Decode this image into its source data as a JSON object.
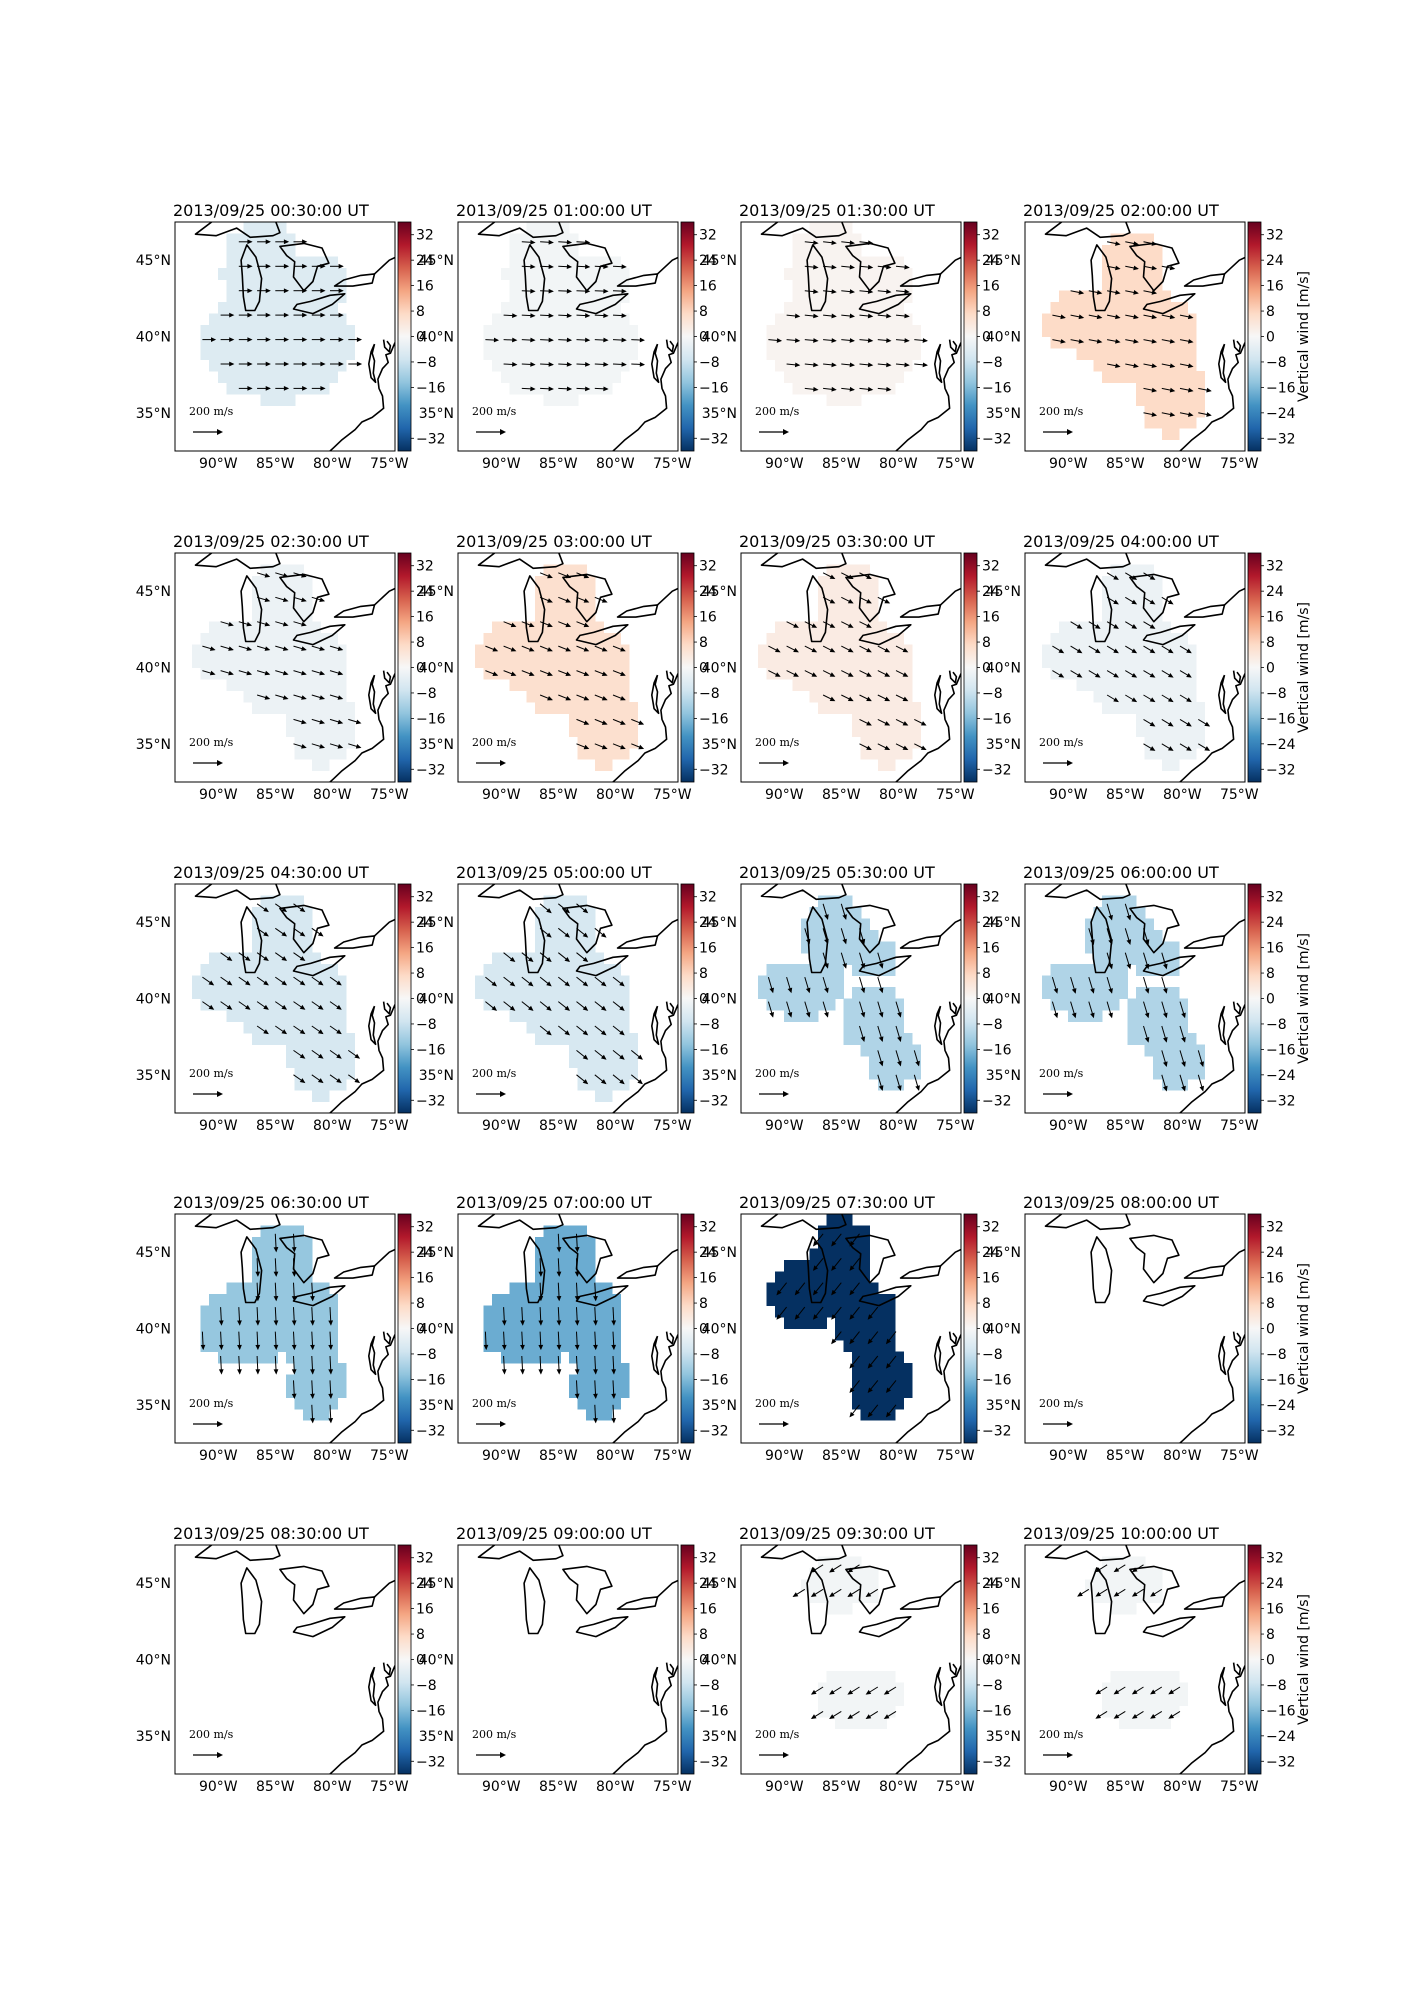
{
  "figure": {
    "cbar_ticks": [
      "32",
      "24",
      "16",
      "8",
      "0",
      "−8",
      "−16",
      "−24",
      "−32"
    ],
    "cbar_ticks_short": [
      "32",
      "24",
      "16",
      "8",
      "0",
      "−8",
      "−16",
      "−32"
    ],
    "cbar_label": "Vertical wind [m/s]",
    "lat_ticks": [
      "45°N",
      "40°N",
      "35°N"
    ],
    "lon_ticks": [
      "90°W",
      "85°W",
      "80°W",
      "75°W"
    ],
    "scale_label": "200 m/s",
    "colormap": "RdBu_r",
    "vmin": -36,
    "vmax": 36
  },
  "panels": [
    {
      "title": "2013/09/25 00:30:00 UT",
      "value": -5,
      "shape": "A",
      "arrow": [
        1,
        0
      ],
      "speed": 0.55
    },
    {
      "title": "2013/09/25 01:00:00 UT",
      "value": -1,
      "shape": "A",
      "arrow": [
        1,
        0.05
      ],
      "speed": 0.55
    },
    {
      "title": "2013/09/25 01:30:00 UT",
      "value": 1,
      "shape": "A",
      "arrow": [
        1,
        0.1
      ],
      "speed": 0.55
    },
    {
      "title": "2013/09/25 02:00:00 UT",
      "value": 7,
      "shape": "B",
      "arrow": [
        1,
        0.2
      ],
      "speed": 0.55
    },
    {
      "title": "2013/09/25 02:30:00 UT",
      "value": -2,
      "shape": "B",
      "arrow": [
        1,
        0.3
      ],
      "speed": 0.55
    },
    {
      "title": "2013/09/25 03:00:00 UT",
      "value": 6,
      "shape": "B",
      "arrow": [
        1,
        0.4
      ],
      "speed": 0.55
    },
    {
      "title": "2013/09/25 03:30:00 UT",
      "value": 3,
      "shape": "B",
      "arrow": [
        1,
        0.5
      ],
      "speed": 0.55
    },
    {
      "title": "2013/09/25 04:00:00 UT",
      "value": -2,
      "shape": "B",
      "arrow": [
        1,
        0.6
      ],
      "speed": 0.55
    },
    {
      "title": "2013/09/25 04:30:00 UT",
      "value": -6,
      "shape": "B",
      "arrow": [
        1,
        0.7
      ],
      "speed": 0.6
    },
    {
      "title": "2013/09/25 05:00:00 UT",
      "value": -6,
      "shape": "B",
      "arrow": [
        1,
        0.8
      ],
      "speed": 0.65
    },
    {
      "title": "2013/09/25 05:30:00 UT",
      "value": -11,
      "shape": "C",
      "arrow": [
        0.3,
        1
      ],
      "speed": 0.8
    },
    {
      "title": "2013/09/25 06:00:00 UT",
      "value": -11,
      "shape": "C",
      "arrow": [
        0.3,
        1
      ],
      "speed": 0.85
    },
    {
      "title": "2013/09/25 06:30:00 UT",
      "value": -14,
      "shape": "D",
      "arrow": [
        0.05,
        1
      ],
      "speed": 0.95
    },
    {
      "title": "2013/09/25 07:00:00 UT",
      "value": -18,
      "shape": "D",
      "arrow": [
        0.05,
        1
      ],
      "speed": 0.95
    },
    {
      "title": "2013/09/25 07:30:00 UT",
      "value": -36,
      "shape": "E",
      "arrow": [
        -0.8,
        1
      ],
      "speed": 0.75
    },
    {
      "title": "2013/09/25 08:00:00 UT",
      "value": null,
      "shape": "none",
      "arrow": null,
      "speed": 0
    },
    {
      "title": "2013/09/25 08:30:00 UT",
      "value": null,
      "shape": "none",
      "arrow": null,
      "speed": 0
    },
    {
      "title": "2013/09/25 09:00:00 UT",
      "value": null,
      "shape": "none",
      "arrow": null,
      "speed": 0
    },
    {
      "title": "2013/09/25 09:30:00 UT",
      "value": -1,
      "shape": "F",
      "arrow": [
        -0.8,
        0.5
      ],
      "speed": 0.6
    },
    {
      "title": "2013/09/25 10:00:00 UT",
      "value": -1,
      "shape": "F",
      "arrow": [
        -0.8,
        0.5
      ],
      "speed": 0.55
    }
  ]
}
